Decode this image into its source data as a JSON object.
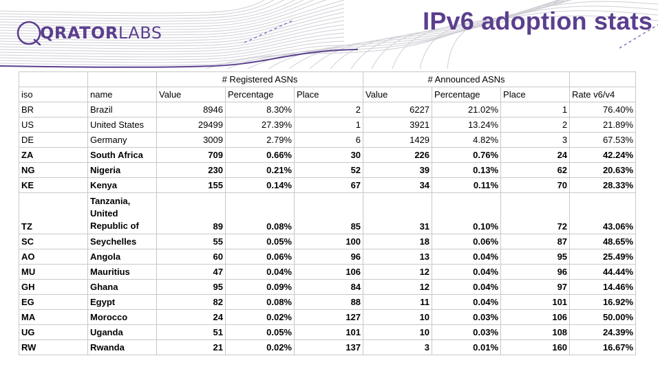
{
  "logo": {
    "bold_text": "QRATOR",
    "light_text": "LABS"
  },
  "title": "IPv6 adoption stats",
  "table": {
    "group_headers": {
      "registered": "# Registered ASNs",
      "announced": "# Announced ASNs"
    },
    "columns": [
      "iso",
      "name",
      "Value",
      "Percentage",
      "Place",
      "Value",
      "Percentage",
      "Place",
      "Rate v6/v4"
    ],
    "rows": [
      {
        "iso": "BR",
        "name": "Brazil",
        "reg_value": "8946",
        "reg_pct": "8.30%",
        "reg_place": "2",
        "ann_value": "6227",
        "ann_pct": "21.02%",
        "ann_place": "1",
        "rate": "76.40%"
      },
      {
        "iso": "US",
        "name": "United States",
        "reg_value": "29499",
        "reg_pct": "27.39%",
        "reg_place": "1",
        "ann_value": "3921",
        "ann_pct": "13.24%",
        "ann_place": "2",
        "rate": "21.89%"
      },
      {
        "iso": "DE",
        "name": "Germany",
        "reg_value": "3009",
        "reg_pct": "2.79%",
        "reg_place": "6",
        "ann_value": "1429",
        "ann_pct": "4.82%",
        "ann_place": "3",
        "rate": "67.53%"
      },
      {
        "iso": "ZA",
        "name": "South Africa",
        "reg_value": "709",
        "reg_pct": "0.66%",
        "reg_place": "30",
        "ann_value": "226",
        "ann_pct": "0.76%",
        "ann_place": "24",
        "rate": "42.24%"
      },
      {
        "iso": "NG",
        "name": "Nigeria",
        "reg_value": "230",
        "reg_pct": "0.21%",
        "reg_place": "52",
        "ann_value": "39",
        "ann_pct": "0.13%",
        "ann_place": "62",
        "rate": "20.63%"
      },
      {
        "iso": "KE",
        "name": "Kenya",
        "reg_value": "155",
        "reg_pct": "0.14%",
        "reg_place": "67",
        "ann_value": "34",
        "ann_pct": "0.11%",
        "ann_place": "70",
        "rate": "28.33%"
      },
      {
        "iso": "TZ",
        "name": "Tanzania, United Republic of",
        "reg_value": "89",
        "reg_pct": "0.08%",
        "reg_place": "85",
        "ann_value": "31",
        "ann_pct": "0.10%",
        "ann_place": "72",
        "rate": "43.06%"
      },
      {
        "iso": "SC",
        "name": "Seychelles",
        "reg_value": "55",
        "reg_pct": "0.05%",
        "reg_place": "100",
        "ann_value": "18",
        "ann_pct": "0.06%",
        "ann_place": "87",
        "rate": "48.65%"
      },
      {
        "iso": "AO",
        "name": "Angola",
        "reg_value": "60",
        "reg_pct": "0.06%",
        "reg_place": "96",
        "ann_value": "13",
        "ann_pct": "0.04%",
        "ann_place": "95",
        "rate": "25.49%"
      },
      {
        "iso": "MU",
        "name": "Mauritius",
        "reg_value": "47",
        "reg_pct": "0.04%",
        "reg_place": "106",
        "ann_value": "12",
        "ann_pct": "0.04%",
        "ann_place": "96",
        "rate": "44.44%"
      },
      {
        "iso": "GH",
        "name": "Ghana",
        "reg_value": "95",
        "reg_pct": "0.09%",
        "reg_place": "84",
        "ann_value": "12",
        "ann_pct": "0.04%",
        "ann_place": "97",
        "rate": "14.46%"
      },
      {
        "iso": "EG",
        "name": "Egypt",
        "reg_value": "82",
        "reg_pct": "0.08%",
        "reg_place": "88",
        "ann_value": "11",
        "ann_pct": "0.04%",
        "ann_place": "101",
        "rate": "16.92%"
      },
      {
        "iso": "MA",
        "name": "Morocco",
        "reg_value": "24",
        "reg_pct": "0.02%",
        "reg_place": "127",
        "ann_value": "10",
        "ann_pct": "0.03%",
        "ann_place": "106",
        "rate": "50.00%"
      },
      {
        "iso": "UG",
        "name": "Uganda",
        "reg_value": "51",
        "reg_pct": "0.05%",
        "reg_place": "101",
        "ann_value": "10",
        "ann_pct": "0.03%",
        "ann_place": "108",
        "rate": "24.39%"
      },
      {
        "iso": "RW",
        "name": "Rwanda",
        "reg_value": "21",
        "reg_pct": "0.02%",
        "reg_place": "137",
        "ann_value": "3",
        "ann_pct": "0.01%",
        "ann_place": "160",
        "rate": "16.67%"
      }
    ]
  },
  "colors": {
    "brand": "#5b3f8e",
    "wave": "#cfcfd6",
    "accent_dash": "#8a6fc0",
    "grid": "#c8c8c8"
  }
}
